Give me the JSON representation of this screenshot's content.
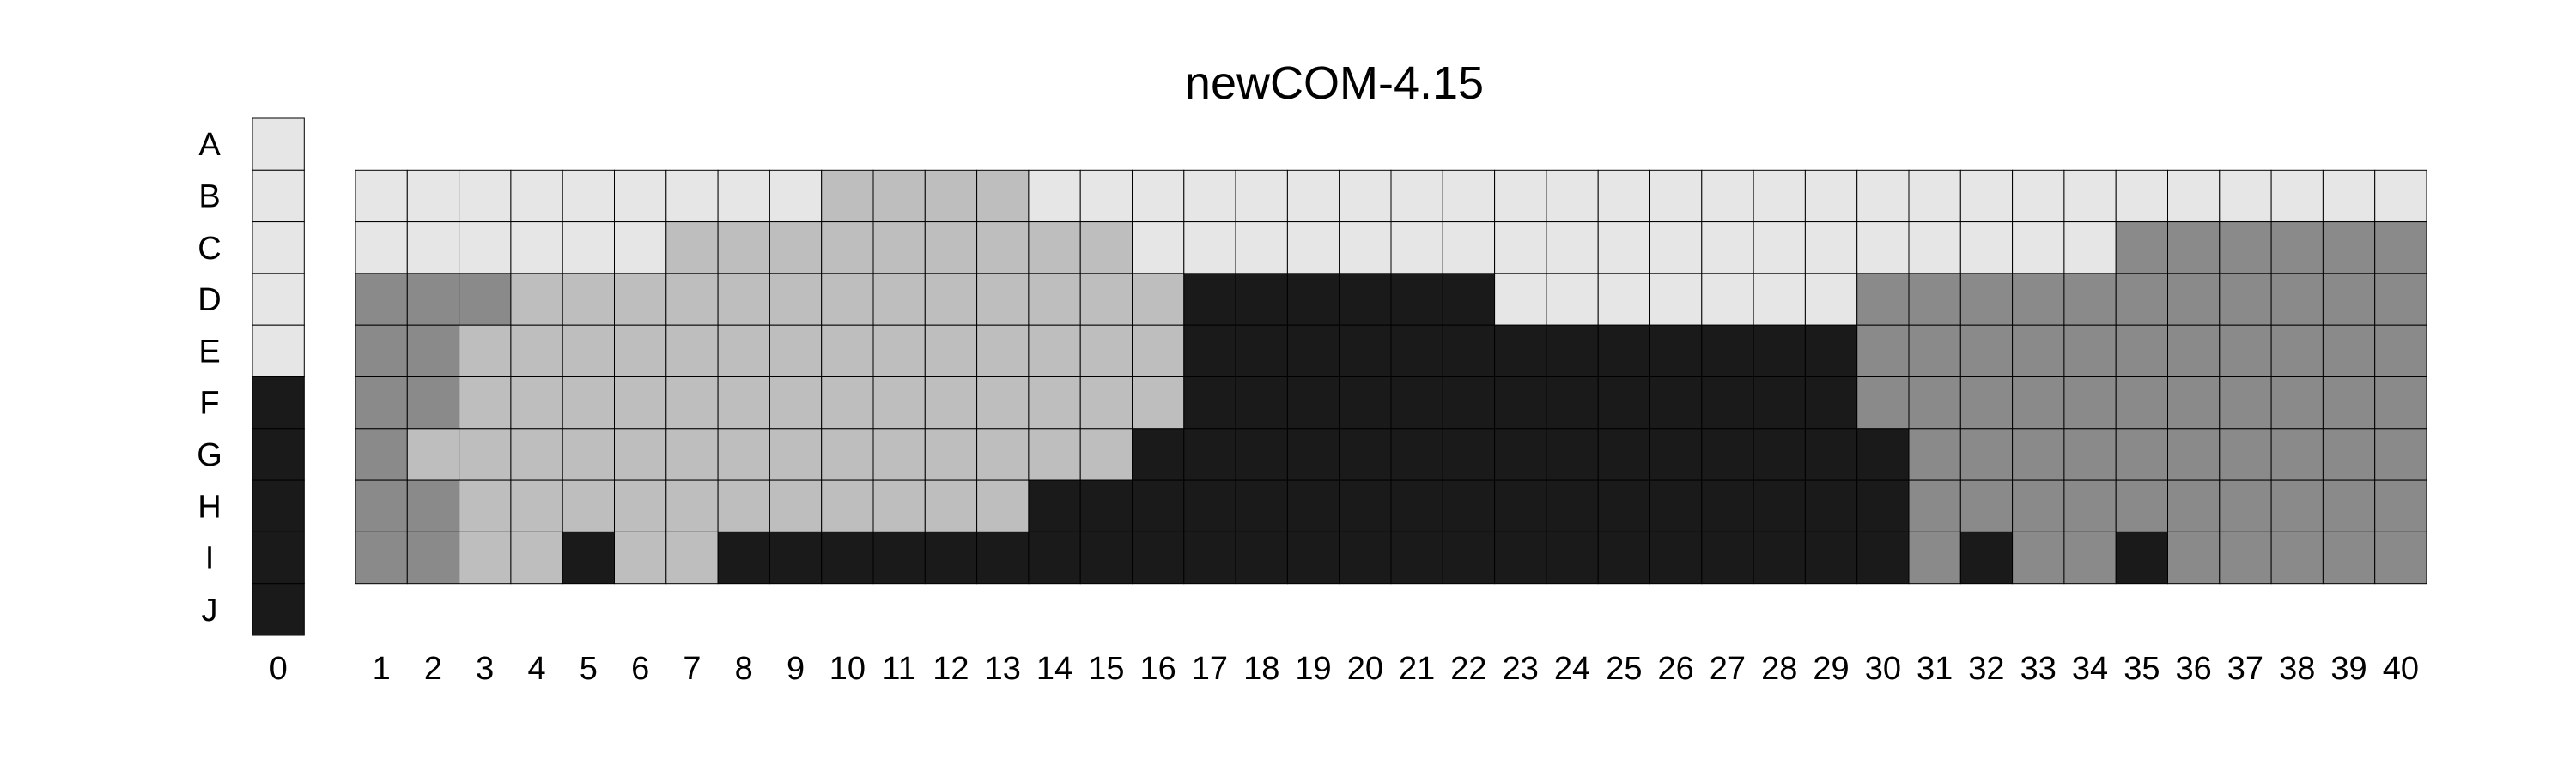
{
  "chart_data": {
    "type": "heatmap",
    "title": "newCOM-4.15",
    "xlabel": "",
    "ylabel": "",
    "grid": true,
    "legend": "none",
    "rows": [
      "A",
      "B",
      "C",
      "D",
      "E",
      "F",
      "G",
      "H",
      "I",
      "J"
    ],
    "column0": {
      "label": "0",
      "values": [
        1,
        1,
        1,
        1,
        1,
        4,
        4,
        4,
        4,
        4
      ]
    },
    "columns": [
      "1",
      "2",
      "3",
      "4",
      "5",
      "6",
      "7",
      "8",
      "9",
      "10",
      "11",
      "12",
      "13",
      "14",
      "15",
      "16",
      "17",
      "18",
      "19",
      "20",
      "21",
      "22",
      "23",
      "24",
      "25",
      "26",
      "27",
      "28",
      "29",
      "30",
      "31",
      "32",
      "33",
      "34",
      "35",
      "36",
      "37",
      "38",
      "39",
      "40"
    ],
    "matrix_rows": [
      "B",
      "C",
      "D",
      "E",
      "F",
      "G",
      "H",
      "I"
    ],
    "matrix": [
      [
        1,
        1,
        1,
        1,
        1,
        1,
        1,
        1,
        1,
        2,
        2,
        2,
        2,
        1,
        1,
        1,
        1,
        1,
        1,
        1,
        1,
        1,
        1,
        1,
        1,
        1,
        1,
        1,
        1,
        1,
        1,
        1,
        1,
        1,
        1,
        1,
        1,
        1,
        1,
        1
      ],
      [
        1,
        1,
        1,
        1,
        1,
        1,
        2,
        2,
        2,
        2,
        2,
        2,
        2,
        2,
        2,
        1,
        1,
        1,
        1,
        1,
        1,
        1,
        1,
        1,
        1,
        1,
        1,
        1,
        1,
        1,
        1,
        1,
        1,
        1,
        3,
        3,
        3,
        3,
        3,
        3
      ],
      [
        3,
        3,
        3,
        2,
        2,
        2,
        2,
        2,
        2,
        2,
        2,
        2,
        2,
        2,
        2,
        2,
        4,
        4,
        4,
        4,
        4,
        4,
        1,
        1,
        1,
        1,
        1,
        1,
        1,
        3,
        3,
        3,
        3,
        3,
        3,
        3,
        3,
        3,
        3,
        3
      ],
      [
        3,
        3,
        2,
        2,
        2,
        2,
        2,
        2,
        2,
        2,
        2,
        2,
        2,
        2,
        2,
        2,
        4,
        4,
        4,
        4,
        4,
        4,
        4,
        4,
        4,
        4,
        4,
        4,
        4,
        3,
        3,
        3,
        3,
        3,
        3,
        3,
        3,
        3,
        3,
        3
      ],
      [
        3,
        3,
        2,
        2,
        2,
        2,
        2,
        2,
        2,
        2,
        2,
        2,
        2,
        2,
        2,
        2,
        4,
        4,
        4,
        4,
        4,
        4,
        4,
        4,
        4,
        4,
        4,
        4,
        4,
        3,
        3,
        3,
        3,
        3,
        3,
        3,
        3,
        3,
        3,
        3
      ],
      [
        3,
        2,
        2,
        2,
        2,
        2,
        2,
        2,
        2,
        2,
        2,
        2,
        2,
        2,
        2,
        4,
        4,
        4,
        4,
        4,
        4,
        4,
        4,
        4,
        4,
        4,
        4,
        4,
        4,
        4,
        3,
        3,
        3,
        3,
        3,
        3,
        3,
        3,
        3,
        3
      ],
      [
        3,
        3,
        2,
        2,
        2,
        2,
        2,
        2,
        2,
        2,
        2,
        2,
        2,
        4,
        4,
        4,
        4,
        4,
        4,
        4,
        4,
        4,
        4,
        4,
        4,
        4,
        4,
        4,
        4,
        4,
        3,
        3,
        3,
        3,
        3,
        3,
        3,
        3,
        3,
        3
      ],
      [
        3,
        3,
        2,
        2,
        4,
        2,
        2,
        4,
        4,
        4,
        4,
        4,
        4,
        4,
        4,
        4,
        4,
        4,
        4,
        4,
        4,
        4,
        4,
        4,
        4,
        4,
        4,
        4,
        4,
        4,
        3,
        4,
        3,
        3,
        4,
        3,
        3,
        3,
        3,
        3
      ]
    ],
    "colors": {
      "1": "#e6e6e6",
      "2": "#bebebe",
      "3": "#8a8a8a",
      "4": "#1a1a1a"
    }
  }
}
